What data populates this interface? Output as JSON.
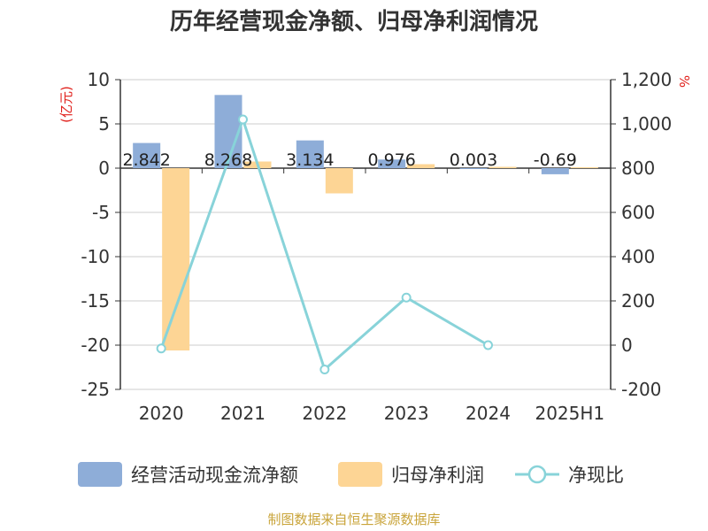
{
  "chart_data": {
    "type": "bar",
    "title": "历年经营现金净额、归母净利润情况",
    "categories": [
      "2020",
      "2021",
      "2022",
      "2023",
      "2024",
      "2025H1"
    ],
    "left_axis": {
      "unit": "(亿元)",
      "range": [
        -25,
        10
      ],
      "ticks": [
        "10",
        "5",
        "0",
        "-5",
        "-10",
        "-15",
        "-20",
        "-25"
      ]
    },
    "right_axis": {
      "unit": "%",
      "range": [
        -200,
        1200
      ],
      "ticks": [
        "1,200",
        "1,000",
        "800",
        "600",
        "400",
        "200",
        "0",
        "-200"
      ]
    },
    "series": [
      {
        "name": "经营活动现金流净额",
        "type": "bar",
        "axis": "left",
        "color": "#8eadd8",
        "values": [
          2.842,
          8.268,
          3.134,
          0.976,
          0.003,
          -0.69
        ],
        "labels": [
          "2.842",
          "8.268",
          "3.134",
          "0.976",
          "0.003",
          "-0.69"
        ]
      },
      {
        "name": "归母净利润",
        "type": "bar",
        "axis": "left",
        "color": "#fdd595",
        "values": [
          -20.6,
          0.75,
          -2.85,
          0.45,
          0.15,
          0.1
        ]
      },
      {
        "name": "净现比",
        "type": "line",
        "axis": "right",
        "color": "#88d3d9",
        "values": [
          -15,
          1020,
          -110,
          215,
          0,
          null
        ]
      }
    ],
    "grid": true,
    "legend_position": "bottom"
  },
  "source": "制图数据来自恒生聚源数据库"
}
